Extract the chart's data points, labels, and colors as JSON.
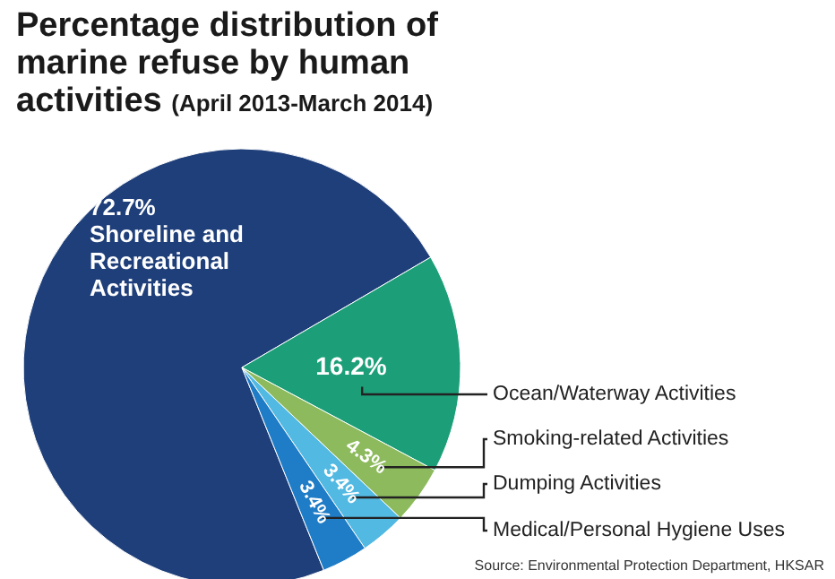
{
  "chart_data": {
    "type": "pie",
    "title": "Percentage distribution of marine refuse by human activities",
    "subtitle": "(April 2013-March 2014)",
    "categories": [
      "Shoreline and Recreational Activities",
      "Ocean/Waterway Activities",
      "Smoking-related Activities",
      "Dumping Activities",
      "Medical/Personal Hygiene Uses"
    ],
    "values": [
      72.7,
      16.2,
      4.3,
      3.4,
      3.4
    ],
    "colors": [
      "#1f3f7a",
      "#1c9f78",
      "#8cba5c",
      "#52b9e2",
      "#1f7cc6"
    ],
    "value_labels": [
      "72.7%",
      "16.2%",
      "4.3%",
      "3.4%",
      "3.4%"
    ],
    "annotations": [
      "Source: Environmental Protection Department, HKSAR"
    ]
  }
}
